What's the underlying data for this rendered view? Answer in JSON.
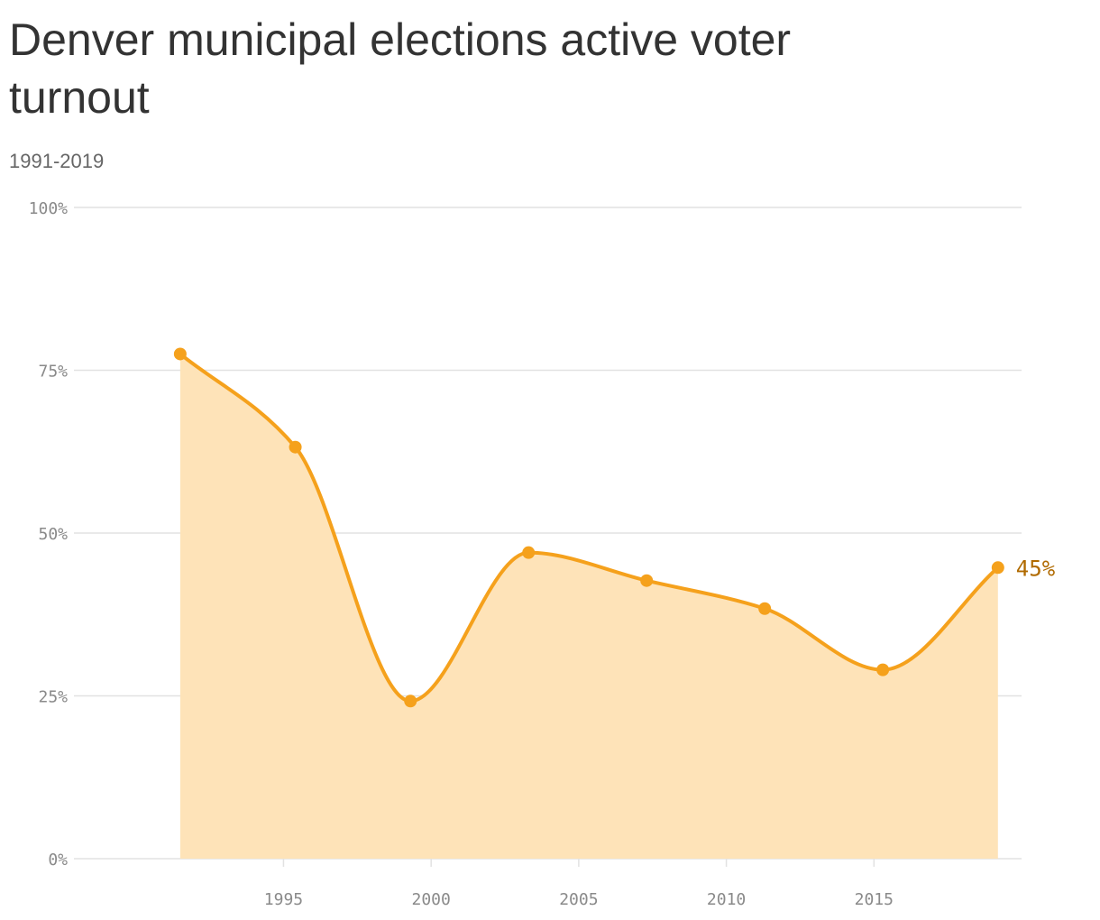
{
  "colors": {
    "line": "#f5a11c",
    "area": "#fee3b8",
    "grid": "#e2e2e2",
    "end_label": "#b06a00"
  },
  "chart_data": {
    "type": "area",
    "title": "Denver municipal elections active voter turnout",
    "subtitle": "1991-2019",
    "xlabel": "",
    "ylabel": "",
    "x": [
      1991.5,
      1995.4,
      1999.3,
      2003.3,
      2007.3,
      2011.3,
      2015.3,
      2019.2
    ],
    "values": [
      77.5,
      63.2,
      24.2,
      47.0,
      42.7,
      38.4,
      29.0,
      44.7
    ],
    "xlim": [
      1987.9,
      2020.0
    ],
    "ylim": [
      0,
      100
    ],
    "y_ticks": [
      0,
      25,
      50,
      75,
      100
    ],
    "y_tick_labels": [
      "0%",
      "25%",
      "50%",
      "75%",
      "100%"
    ],
    "x_ticks": [
      1995,
      2000,
      2005,
      2010,
      2015
    ],
    "x_tick_labels": [
      "1995",
      "2000",
      "2005",
      "2010",
      "2015"
    ],
    "end_label": "45%",
    "grid": true,
    "legend": "none"
  }
}
